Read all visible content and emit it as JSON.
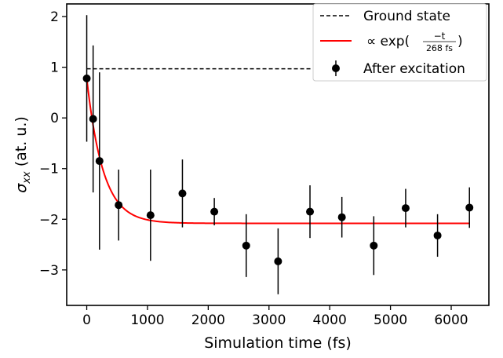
{
  "chart_data": {
    "type": "scatter",
    "xlabel": "Simulation time (fs)",
    "ylabel_symbol": "σ",
    "ylabel_subscript": "xx",
    "ylabel_units": " (at. u.)",
    "xlim": [
      -330,
      6620
    ],
    "ylim": [
      -3.7,
      2.25
    ],
    "grid": false,
    "legend_placement": "top-right",
    "x_ticks": [
      0,
      1000,
      2000,
      3000,
      4000,
      5000,
      6000
    ],
    "y_ticks": [
      -3,
      -2,
      -1,
      0,
      1,
      2
    ],
    "tick_labels_x": [
      "0",
      "1000",
      "2000",
      "3000",
      "4000",
      "5000",
      "6000"
    ],
    "tick_labels_y": [
      "−3",
      "−2",
      "−1",
      "0",
      "1",
      "2"
    ],
    "series": [
      {
        "name": "Ground state",
        "kind": "hline",
        "style": "dashed",
        "color": "#000000",
        "y": 0.97,
        "x_range": [
          0,
          6300
        ]
      },
      {
        "name": "∝ exp(−t/268 fs)",
        "kind": "fit",
        "color": "#ff0000",
        "tau_fs": 268,
        "y_start": 0.78,
        "y_end": -2.08,
        "x_range": [
          0,
          6300
        ]
      },
      {
        "name": "After excitation",
        "kind": "errorbar",
        "color": "#000000",
        "x": [
          0,
          105,
          210,
          525,
          1050,
          1575,
          2100,
          2625,
          3150,
          3675,
          4200,
          4725,
          5250,
          5775,
          6300
        ],
        "y": [
          0.78,
          -0.02,
          -0.85,
          -1.72,
          -1.92,
          -1.49,
          -1.85,
          -2.52,
          -2.83,
          -1.85,
          -1.96,
          -2.52,
          -1.78,
          -2.32,
          -1.77
        ],
        "yerr": [
          1.25,
          1.45,
          1.75,
          0.7,
          0.9,
          0.67,
          0.27,
          0.62,
          0.65,
          0.52,
          0.4,
          0.58,
          0.38,
          0.42,
          0.4
        ]
      }
    ],
    "legend": {
      "ground_label": "Ground state",
      "fit_prefix": "∝ exp(",
      "fit_numerator": "−t",
      "fit_denominator": "268 fs",
      "fit_suffix": ")",
      "points_label": "After excitation"
    }
  }
}
